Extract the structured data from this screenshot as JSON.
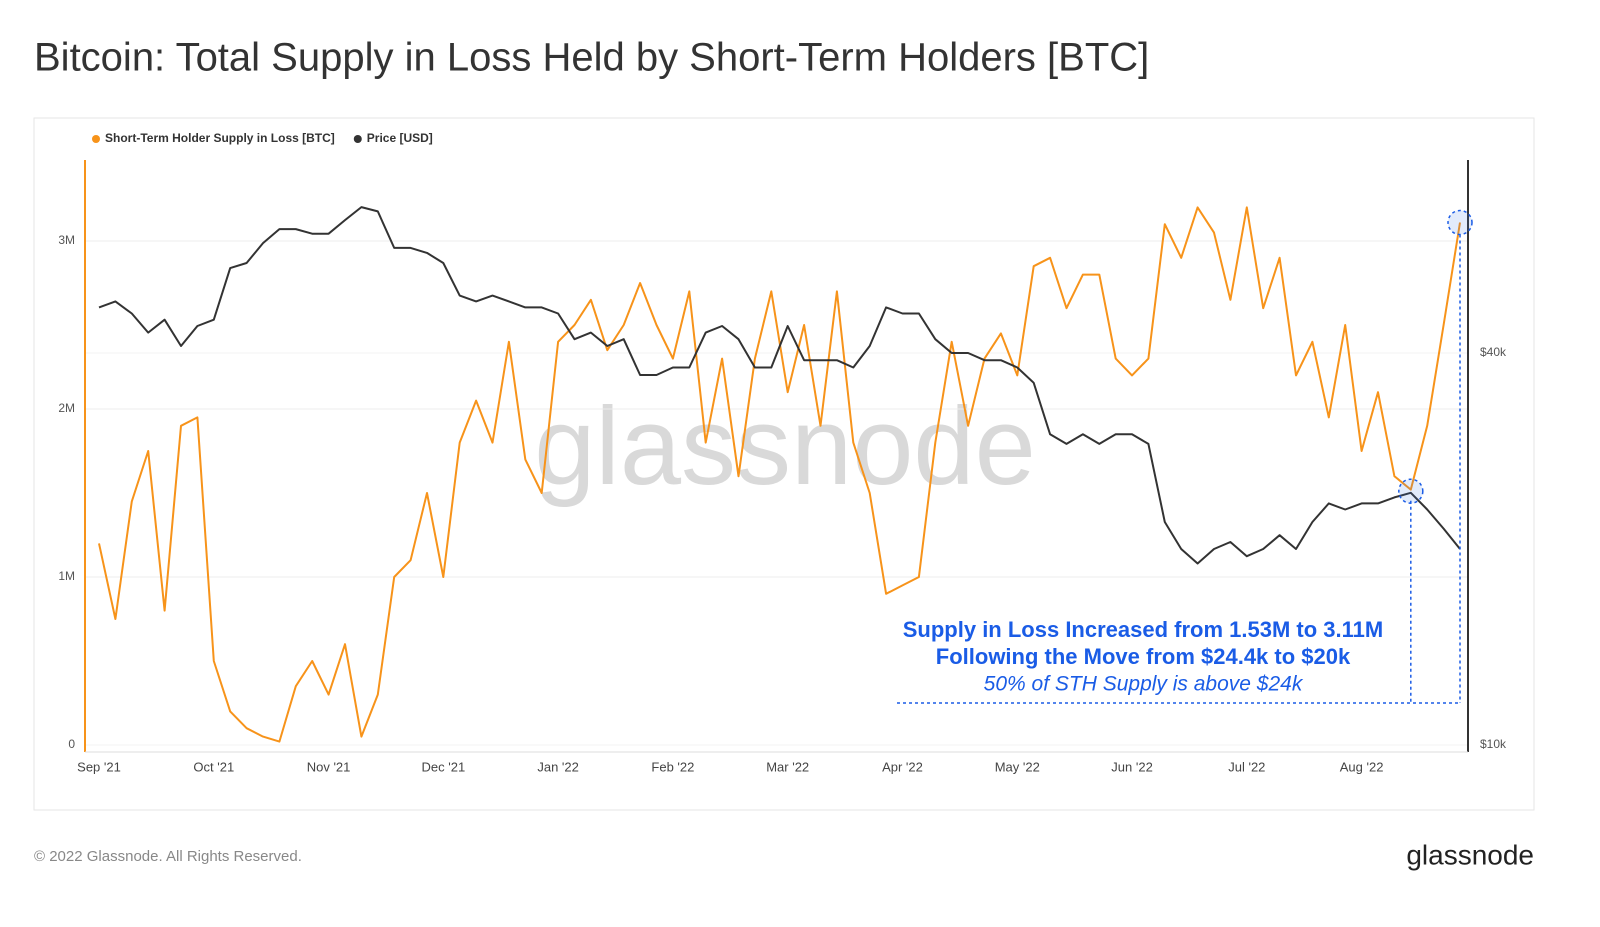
{
  "chart_data": {
    "type": "line",
    "title": "Bitcoin: Total Supply in Loss Held by Short-Term Holders [BTC]",
    "watermark": "glassnode",
    "footer": "© 2022 Glassnode. All Rights Reserved.",
    "logo": "glassnode",
    "annotation": {
      "line1": "Supply in Loss Increased from 1.53M to 3.11M",
      "line2": "Following the Move from $24.4k to $20k",
      "line3": "50% of STH Supply is above $24k"
    },
    "legend": "top-left",
    "categories": [
      "Sep '21",
      null,
      null,
      null,
      null,
      null,
      null,
      "Oct '21",
      null,
      null,
      null,
      null,
      null,
      null,
      "Nov '21",
      null,
      null,
      null,
      null,
      null,
      null,
      "Dec '21",
      null,
      null,
      null,
      null,
      null,
      null,
      "Jan '22",
      null,
      null,
      null,
      null,
      null,
      null,
      "Feb '22",
      null,
      null,
      null,
      null,
      null,
      null,
      "Mar '22",
      null,
      null,
      null,
      null,
      null,
      null,
      "Apr '22",
      null,
      null,
      null,
      null,
      null,
      null,
      "May '22",
      null,
      null,
      null,
      null,
      null,
      null,
      "Jun '22",
      null,
      null,
      null,
      null,
      null,
      null,
      "Jul '22",
      null,
      null,
      null,
      null,
      null,
      null,
      "Aug '22",
      null,
      null,
      null,
      null,
      null,
      null
    ],
    "series": [
      {
        "name": "Short-Term Holder Supply in Loss [BTC]",
        "color": "#f7931a",
        "values": [
          1200000,
          750000,
          1450000,
          1750000,
          800000,
          1900000,
          1950000,
          500000,
          200000,
          100000,
          50000,
          20000,
          350000,
          500000,
          300000,
          600000,
          50000,
          300000,
          1000000,
          1100000,
          1500000,
          1000000,
          1800000,
          2050000,
          1800000,
          2400000,
          1700000,
          1500000,
          2400000,
          2500000,
          2650000,
          2350000,
          2500000,
          2750000,
          2500000,
          2300000,
          2700000,
          1800000,
          2300000,
          1600000,
          2300000,
          2700000,
          2100000,
          2500000,
          1900000,
          2700000,
          1800000,
          1500000,
          900000,
          950000,
          1000000,
          1800000,
          2400000,
          1900000,
          2300000,
          2450000,
          2200000,
          2850000,
          2900000,
          2600000,
          2800000,
          2800000,
          2300000,
          2200000,
          2300000,
          3100000,
          2900000,
          3200000,
          3050000,
          2650000,
          3200000,
          2600000,
          2900000,
          2200000,
          2400000,
          1950000,
          2500000,
          1750000,
          2100000,
          1600000,
          1520000,
          1900000,
          2500000,
          3110000
        ]
      },
      {
        "name": "Price [USD]",
        "color": "#333333",
        "axis": "y2",
        "values": [
          47000,
          48000,
          46000,
          43000,
          45000,
          41000,
          44000,
          45000,
          54000,
          55000,
          59000,
          62000,
          62000,
          61000,
          61000,
          64000,
          67000,
          66000,
          58000,
          58000,
          57000,
          55000,
          49000,
          48000,
          49000,
          48000,
          47000,
          47000,
          46000,
          42000,
          43000,
          41000,
          42000,
          37000,
          37000,
          38000,
          38000,
          43000,
          44000,
          42000,
          38000,
          38000,
          44000,
          39000,
          39000,
          39000,
          38000,
          41000,
          47000,
          46000,
          46000,
          42000,
          40000,
          40000,
          39000,
          39000,
          38000,
          36000,
          30000,
          29000,
          30000,
          29000,
          30000,
          30000,
          29000,
          22000,
          20000,
          19000,
          20000,
          20500,
          19500,
          20000,
          21000,
          20000,
          22000,
          23500,
          23000,
          23500,
          23500,
          24000,
          24400,
          23000,
          21500,
          20000
        ]
      }
    ],
    "ylim": [
      0,
      3500000
    ],
    "yticks": [
      0,
      {
        "value": 1000000,
        "label": "1M"
      },
      {
        "value": 2000000,
        "label": "2M"
      },
      {
        "value": 3000000,
        "label": "3M"
      }
    ],
    "y2lim": [
      10000,
      80000
    ],
    "y2log": true,
    "y2ticks": [
      {
        "value": 10000,
        "label": "$10k"
      },
      {
        "value": 40000,
        "label": "$40k"
      }
    ],
    "grid": true
  }
}
